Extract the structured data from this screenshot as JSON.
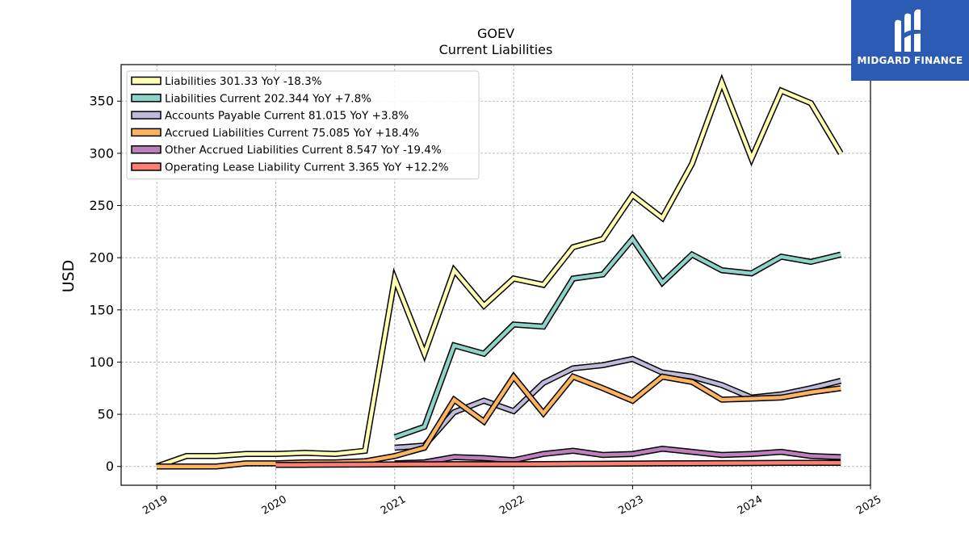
{
  "chart_data": {
    "type": "line",
    "title": "GOEV",
    "subtitle": "Current  Liabilities",
    "ylabel": "USD",
    "xlabel": "",
    "ylim": [
      -18,
      385
    ],
    "xlim": [
      2018.7,
      2025.0
    ],
    "yticks": [
      0,
      50,
      100,
      150,
      200,
      250,
      300,
      350
    ],
    "xticks": [
      "2019",
      "2020",
      "2021",
      "2022",
      "2023",
      "2024",
      "2025"
    ],
    "grid": true,
    "legend_position": "top-left",
    "x": [
      2019.0,
      2019.25,
      2019.5,
      2019.75,
      2020.0,
      2020.25,
      2020.5,
      2020.75,
      2021.0,
      2021.25,
      2021.5,
      2021.75,
      2022.0,
      2022.25,
      2022.5,
      2022.75,
      2023.0,
      2023.25,
      2023.5,
      2023.75,
      2024.0,
      2024.25,
      2024.5,
      2024.75
    ],
    "series": [
      {
        "name": "Liabilities",
        "legend": "Liabilities  301.33 YoY -18.3%",
        "color": "#ffffb3",
        "values": [
          0,
          10,
          10,
          12,
          12,
          13,
          12,
          15,
          180,
          108,
          188,
          154,
          180,
          174,
          210,
          218,
          260,
          238,
          290,
          368,
          295,
          360,
          348,
          300
        ]
      },
      {
        "name": "Liabilities Current",
        "legend": "Liabilities Current  202.344 YoY +7.8%",
        "color": "#8dd3c7",
        "values": [
          null,
          null,
          null,
          null,
          null,
          null,
          null,
          null,
          28,
          38,
          116,
          108,
          136,
          134,
          180,
          184,
          218,
          176,
          203,
          188,
          185,
          201,
          196,
          203
        ]
      },
      {
        "name": "Accounts Payable Current",
        "legend": "Accounts Payable Current  81.015 YoY +3.8%",
        "color": "#bebada",
        "values": [
          null,
          null,
          null,
          null,
          null,
          null,
          null,
          null,
          18,
          20,
          52,
          63,
          53,
          80,
          94,
          97,
          103,
          90,
          86,
          78,
          66,
          69,
          75,
          82
        ]
      },
      {
        "name": "Accrued Liabilities Current",
        "legend": "Accrued Liabilities Current  75.085 YoY +18.4%",
        "color": "#fdb462",
        "values": [
          0,
          0,
          0,
          3,
          3,
          4,
          4,
          5,
          10,
          18,
          64,
          43,
          86,
          51,
          86,
          75,
          63,
          86,
          81,
          64,
          65,
          66,
          71,
          75
        ]
      },
      {
        "name": "Other Accrued Liabilities Current",
        "legend": "Other Accrued Liabilities Current  8.547 YoY -19.4%",
        "color": "#bc80bd",
        "values": [
          null,
          null,
          null,
          null,
          null,
          null,
          null,
          null,
          3,
          4,
          9,
          8,
          6,
          12,
          15,
          11,
          12,
          17,
          14,
          11,
          12,
          14,
          10,
          9
        ]
      },
      {
        "name": "Operating Lease Liability Current",
        "legend": "Operating Lease Liability Current  3.365 YoY +12.2%",
        "color": "#fb8072",
        "values": [
          null,
          null,
          null,
          null,
          1.5,
          1.6,
          1.7,
          1.8,
          2.0,
          2.1,
          2.2,
          2.2,
          2.2,
          2.3,
          2.5,
          2.6,
          2.8,
          3.0,
          3.1,
          3.2,
          3.3,
          3.4,
          3.4,
          3.4
        ]
      }
    ]
  },
  "logo": {
    "text": "MIDGARD FINANCE",
    "color": "#2b5bb3"
  }
}
